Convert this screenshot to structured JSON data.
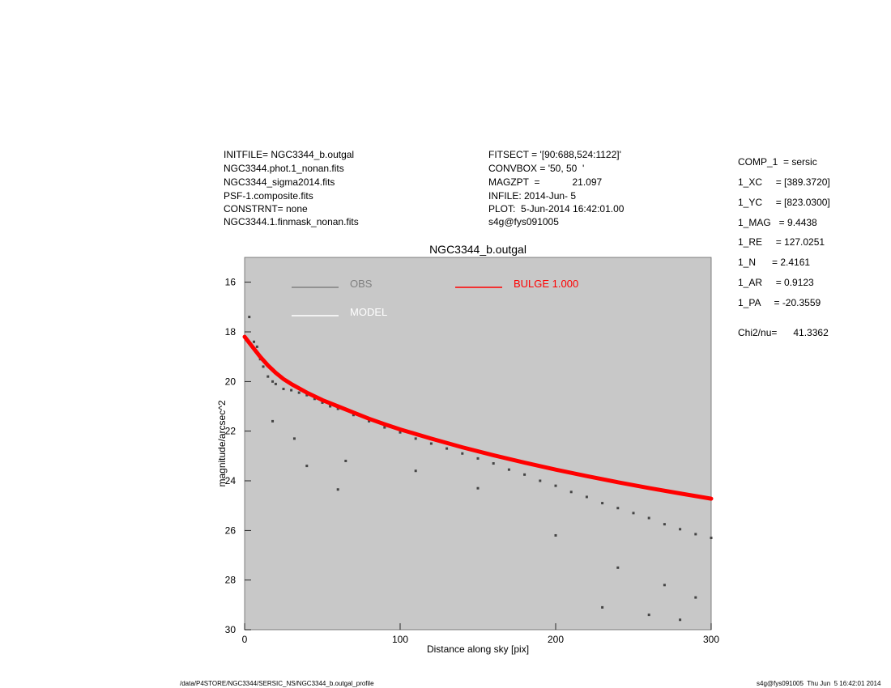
{
  "header_left": [
    "INITFILE= NGC3344_b.outgal",
    "NGC3344.phot.1_nonan.fits",
    "NGC3344_sigma2014.fits",
    "PSF-1.composite.fits",
    "CONSTRNT= none",
    "NGC3344.1.finmask_nonan.fits"
  ],
  "header_mid": [
    "FITSECT = '[90:688,524:1122]'",
    "CONVBOX = '50, 50  '",
    "MAGZPT  =            21.097",
    "INFILE: 2014-Jun- 5",
    "PLOT:  5-Jun-2014 16:42:01.00",
    "s4g@fys091005"
  ],
  "params": [
    "COMP_1  = sersic",
    "1_XC     = [389.3720]",
    "1_YC     = [823.0300]",
    "1_MAG   = 9.4438",
    "1_RE     = 127.0251",
    "1_N      = 2.4161",
    "1_AR     = 0.9123",
    "1_PA     = -20.3559"
  ],
  "chi2": "Chi2/nu=      41.3362",
  "footer_left": "/data/P4STORE/NGC3344/SERSIC_NS/NGC3344_b.outgal_profile",
  "footer_right": "s4g@fys091005  Thu Jun  5 16:42:01 2014",
  "colors": {
    "panel_bg": "#c8c8c8",
    "obs": "#444444",
    "obs_legend": "#808080",
    "model": "#ffffff",
    "bulge": "#ff0000"
  },
  "chart_data": {
    "type": "scatter",
    "title": "NGC3344_b.outgal",
    "xlabel": "Distance along sky [pix]",
    "ylabel": "magnitude/arcsec^2",
    "xlim": [
      0,
      300
    ],
    "ylim": [
      30,
      15
    ],
    "y_inverted": true,
    "xticks": [
      0,
      100,
      200,
      300
    ],
    "yticks": [
      16,
      18,
      20,
      22,
      24,
      26,
      28,
      30
    ],
    "grid": false,
    "legend": [
      {
        "name": "OBS",
        "color": "#808080"
      },
      {
        "name": "MODEL",
        "color": "#ffffff"
      },
      {
        "name": "BULGE  1.000",
        "color": "#ff0000"
      }
    ],
    "series": [
      {
        "name": "OBS",
        "kind": "scatter",
        "x": [
          3,
          6,
          8,
          10,
          12,
          15,
          18,
          20,
          25,
          30,
          35,
          40,
          45,
          50,
          55,
          60,
          70,
          80,
          90,
          100,
          110,
          120,
          130,
          140,
          150,
          160,
          170,
          180,
          190,
          200,
          210,
          220,
          230,
          240,
          250,
          260,
          270,
          280,
          290,
          300,
          18,
          32,
          40,
          60,
          65,
          110,
          150,
          200,
          240,
          270,
          290,
          230,
          260,
          280
        ],
        "y": [
          17.4,
          18.4,
          18.6,
          19.1,
          19.4,
          19.8,
          20.0,
          20.1,
          20.3,
          20.35,
          20.45,
          20.55,
          20.7,
          20.85,
          21.0,
          21.1,
          21.35,
          21.6,
          21.85,
          22.05,
          22.3,
          22.5,
          22.7,
          22.9,
          23.1,
          23.3,
          23.55,
          23.75,
          24.0,
          24.2,
          24.45,
          24.65,
          24.9,
          25.1,
          25.3,
          25.5,
          25.75,
          25.95,
          26.15,
          26.3,
          21.6,
          22.3,
          23.4,
          24.35,
          23.2,
          23.6,
          24.3,
          26.2,
          27.5,
          28.2,
          28.7,
          29.1,
          29.4,
          29.6
        ]
      },
      {
        "name": "BULGE  1.000",
        "kind": "line",
        "x": [
          0,
          5,
          10,
          15,
          20,
          25,
          30,
          40,
          50,
          60,
          70,
          80,
          90,
          100,
          120,
          140,
          160,
          180,
          200,
          220,
          240,
          260,
          280,
          300
        ],
        "y": [
          18.2,
          18.6,
          19.0,
          19.35,
          19.65,
          19.9,
          20.1,
          20.45,
          20.75,
          21.0,
          21.25,
          21.5,
          21.72,
          21.93,
          22.3,
          22.65,
          22.97,
          23.27,
          23.55,
          23.81,
          24.06,
          24.29,
          24.51,
          24.72
        ]
      }
    ]
  }
}
